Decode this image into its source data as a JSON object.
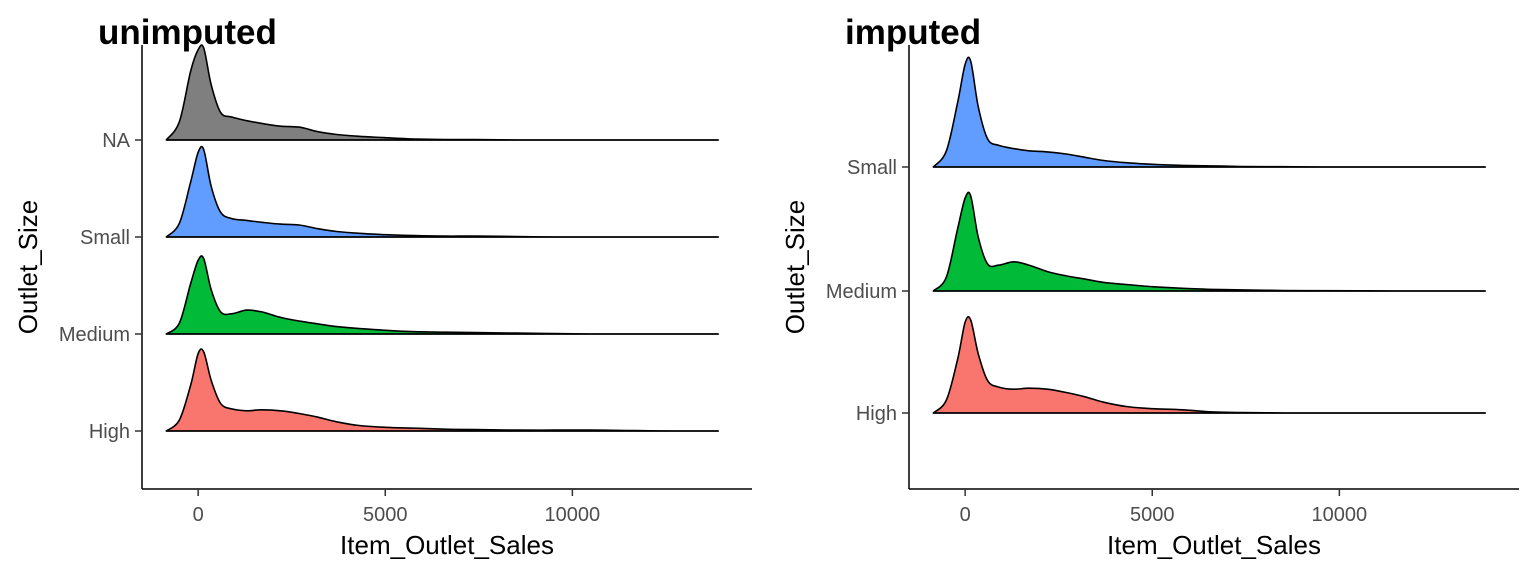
{
  "chart_data": [
    {
      "type": "area",
      "subtype": "ridgeline-density",
      "title": "unimputed",
      "xlabel": "Item_Outlet_Sales",
      "ylabel": "Outlet_Size",
      "xlim": [
        -1500,
        14800
      ],
      "x_ticks": [
        0,
        5000,
        10000
      ],
      "x_tick_labels": [
        "0",
        "5000",
        "10000"
      ],
      "grid": false,
      "legend": "none",
      "categories": [
        "High",
        "Medium",
        "Small",
        "NA"
      ],
      "series": [
        {
          "category": "High",
          "color": "#F8766D",
          "x": [
            -850,
            -500,
            -200,
            0,
            150,
            350,
            600,
            900,
            1300,
            1700,
            2200,
            2700,
            3200,
            3700,
            4300,
            5000,
            5800,
            6600,
            7400,
            8500,
            9500,
            10500,
            11500,
            12700,
            13900
          ],
          "density": [
            0,
            0.12,
            0.5,
            0.84,
            0.86,
            0.55,
            0.3,
            0.24,
            0.22,
            0.23,
            0.22,
            0.19,
            0.15,
            0.1,
            0.06,
            0.04,
            0.03,
            0.02,
            0.015,
            0.01,
            0.01,
            0.01,
            0.005,
            0,
            0
          ]
        },
        {
          "category": "Medium",
          "color": "#00BA38",
          "x": [
            -850,
            -500,
            -200,
            0,
            150,
            350,
            600,
            900,
            1300,
            1700,
            2200,
            2700,
            3200,
            3700,
            4300,
            5000,
            5800,
            6600,
            7400,
            8500,
            9500,
            10500,
            11500,
            12700,
            13900
          ],
          "density": [
            0,
            0.12,
            0.55,
            0.8,
            0.82,
            0.48,
            0.24,
            0.22,
            0.26,
            0.24,
            0.18,
            0.14,
            0.11,
            0.08,
            0.06,
            0.04,
            0.025,
            0.02,
            0.015,
            0.01,
            0.005,
            0,
            0,
            0,
            0
          ]
        },
        {
          "category": "Small",
          "color": "#619CFF",
          "x": [
            -850,
            -500,
            -200,
            0,
            150,
            350,
            600,
            900,
            1300,
            1700,
            2200,
            2700,
            3200,
            3700,
            4300,
            5000,
            5800,
            6600,
            7400,
            8500,
            9500,
            10500,
            11500,
            12700,
            13900
          ],
          "density": [
            0,
            0.15,
            0.6,
            0.92,
            0.95,
            0.55,
            0.27,
            0.2,
            0.18,
            0.16,
            0.14,
            0.13,
            0.09,
            0.06,
            0.04,
            0.025,
            0.015,
            0.01,
            0.01,
            0.005,
            0,
            0,
            0,
            0,
            0
          ]
        },
        {
          "category": "NA",
          "color": "#7F7F7F",
          "x": [
            -850,
            -500,
            -200,
            0,
            150,
            350,
            600,
            900,
            1300,
            1700,
            2200,
            2700,
            3200,
            3700,
            4300,
            5000,
            5800,
            6600,
            7400,
            8500,
            9500,
            10500,
            11500,
            12700,
            13900
          ],
          "density": [
            0,
            0.2,
            0.75,
            0.98,
            1.0,
            0.6,
            0.3,
            0.25,
            0.21,
            0.18,
            0.15,
            0.14,
            0.09,
            0.06,
            0.04,
            0.025,
            0.01,
            0.005,
            0.005,
            0,
            0,
            0,
            0,
            0,
            0
          ]
        }
      ]
    },
    {
      "type": "area",
      "subtype": "ridgeline-density",
      "title": "imputed",
      "xlabel": "Item_Outlet_Sales",
      "ylabel": "Outlet_Size",
      "xlim": [
        -1500,
        14800
      ],
      "x_ticks": [
        0,
        5000,
        10000
      ],
      "x_tick_labels": [
        "0",
        "5000",
        "10000"
      ],
      "grid": false,
      "legend": "none",
      "categories": [
        "High",
        "Medium",
        "Small"
      ],
      "series": [
        {
          "category": "High",
          "color": "#F8766D",
          "x": [
            -850,
            -500,
            -200,
            0,
            150,
            350,
            600,
            900,
            1300,
            1700,
            2200,
            2700,
            3200,
            3700,
            4300,
            5000,
            5800,
            6600,
            7400,
            8500,
            9500,
            10500,
            11500,
            12700,
            13900
          ],
          "density": [
            0,
            0.12,
            0.5,
            0.84,
            0.86,
            0.55,
            0.3,
            0.24,
            0.22,
            0.23,
            0.22,
            0.19,
            0.15,
            0.1,
            0.06,
            0.04,
            0.03,
            0.01,
            0.005,
            0,
            0,
            0,
            0,
            0,
            0
          ]
        },
        {
          "category": "Medium",
          "color": "#00BA38",
          "x": [
            -850,
            -500,
            -200,
            0,
            150,
            350,
            600,
            900,
            1300,
            1700,
            2200,
            2700,
            3200,
            3700,
            4300,
            5000,
            5800,
            6600,
            7400,
            8500,
            9500,
            10500,
            11500,
            12700,
            13900
          ],
          "density": [
            0,
            0.13,
            0.58,
            0.86,
            0.88,
            0.5,
            0.25,
            0.24,
            0.27,
            0.24,
            0.18,
            0.14,
            0.11,
            0.08,
            0.06,
            0.04,
            0.025,
            0.015,
            0.01,
            0.005,
            0.003,
            0.002,
            0,
            0,
            0
          ]
        },
        {
          "category": "Small",
          "color": "#619CFF",
          "x": [
            -850,
            -500,
            -200,
            0,
            150,
            350,
            600,
            900,
            1300,
            1700,
            2200,
            2700,
            3200,
            3700,
            4300,
            5000,
            5800,
            6600,
            7400,
            8500,
            9500,
            10500,
            11500,
            12700,
            13900
          ],
          "density": [
            0,
            0.15,
            0.6,
            0.95,
            0.98,
            0.56,
            0.26,
            0.2,
            0.17,
            0.15,
            0.14,
            0.12,
            0.09,
            0.06,
            0.04,
            0.025,
            0.015,
            0.01,
            0.005,
            0.003,
            0,
            0,
            0,
            0,
            0
          ]
        }
      ]
    }
  ]
}
